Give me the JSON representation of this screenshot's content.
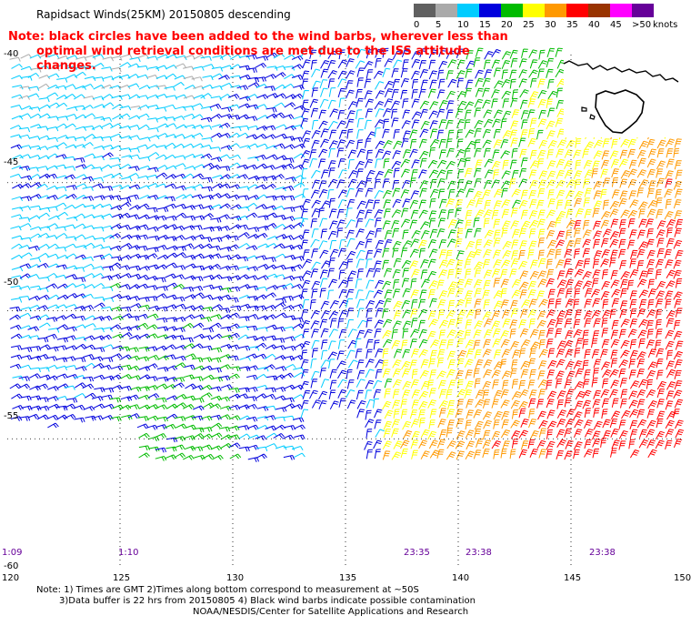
{
  "title": "Rapidsact Winds(25KM) 20150805 descending",
  "note": {
    "line1": "Note: black circles have been added to the wind barbs, wherever less than",
    "line2": "optimal wind retrieval conditions are met due to the ISS attitude changes."
  },
  "colorbar": {
    "unit": "knots",
    "ticks": [
      "0",
      "5",
      "10",
      "15",
      "20",
      "25",
      "30",
      "35",
      "40",
      "45",
      ">50"
    ],
    "colors": [
      "#606060",
      "#aaaaaa",
      "#00ccff",
      "#0000dd",
      "#00bb00",
      "#ffff00",
      "#ff9900",
      "#ff0000",
      "#993300",
      "#ff00ff",
      "#660099"
    ]
  },
  "map": {
    "lat_labels": [
      "-40",
      "-45",
      "-50",
      "-55",
      "-60"
    ],
    "lon_labels": [
      "120",
      "125",
      "130",
      "135",
      "140",
      "145",
      "150"
    ],
    "lat_range": [
      -60,
      -40
    ],
    "lon_range": [
      120,
      150
    ],
    "time_labels": [
      {
        "text": "1:09",
        "lon": 120.1
      },
      {
        "text": "1:10",
        "lon": 124.9
      },
      {
        "text": "23:35",
        "lon": 137.5
      },
      {
        "text": "23:38",
        "lon": 140.3
      },
      {
        "text": "23:38",
        "lon": 145.8
      }
    ]
  },
  "footnote": {
    "line1": "Note: 1) Times are GMT 2)Times along bottom correspond to measurement at ~50S",
    "line2": "3)Data buffer is 22 hrs from 20150805 4) Black wind barbs indicate possible contamination"
  },
  "credit": "NOAA/NESDIS/Center for Satellite Applications and Research"
}
